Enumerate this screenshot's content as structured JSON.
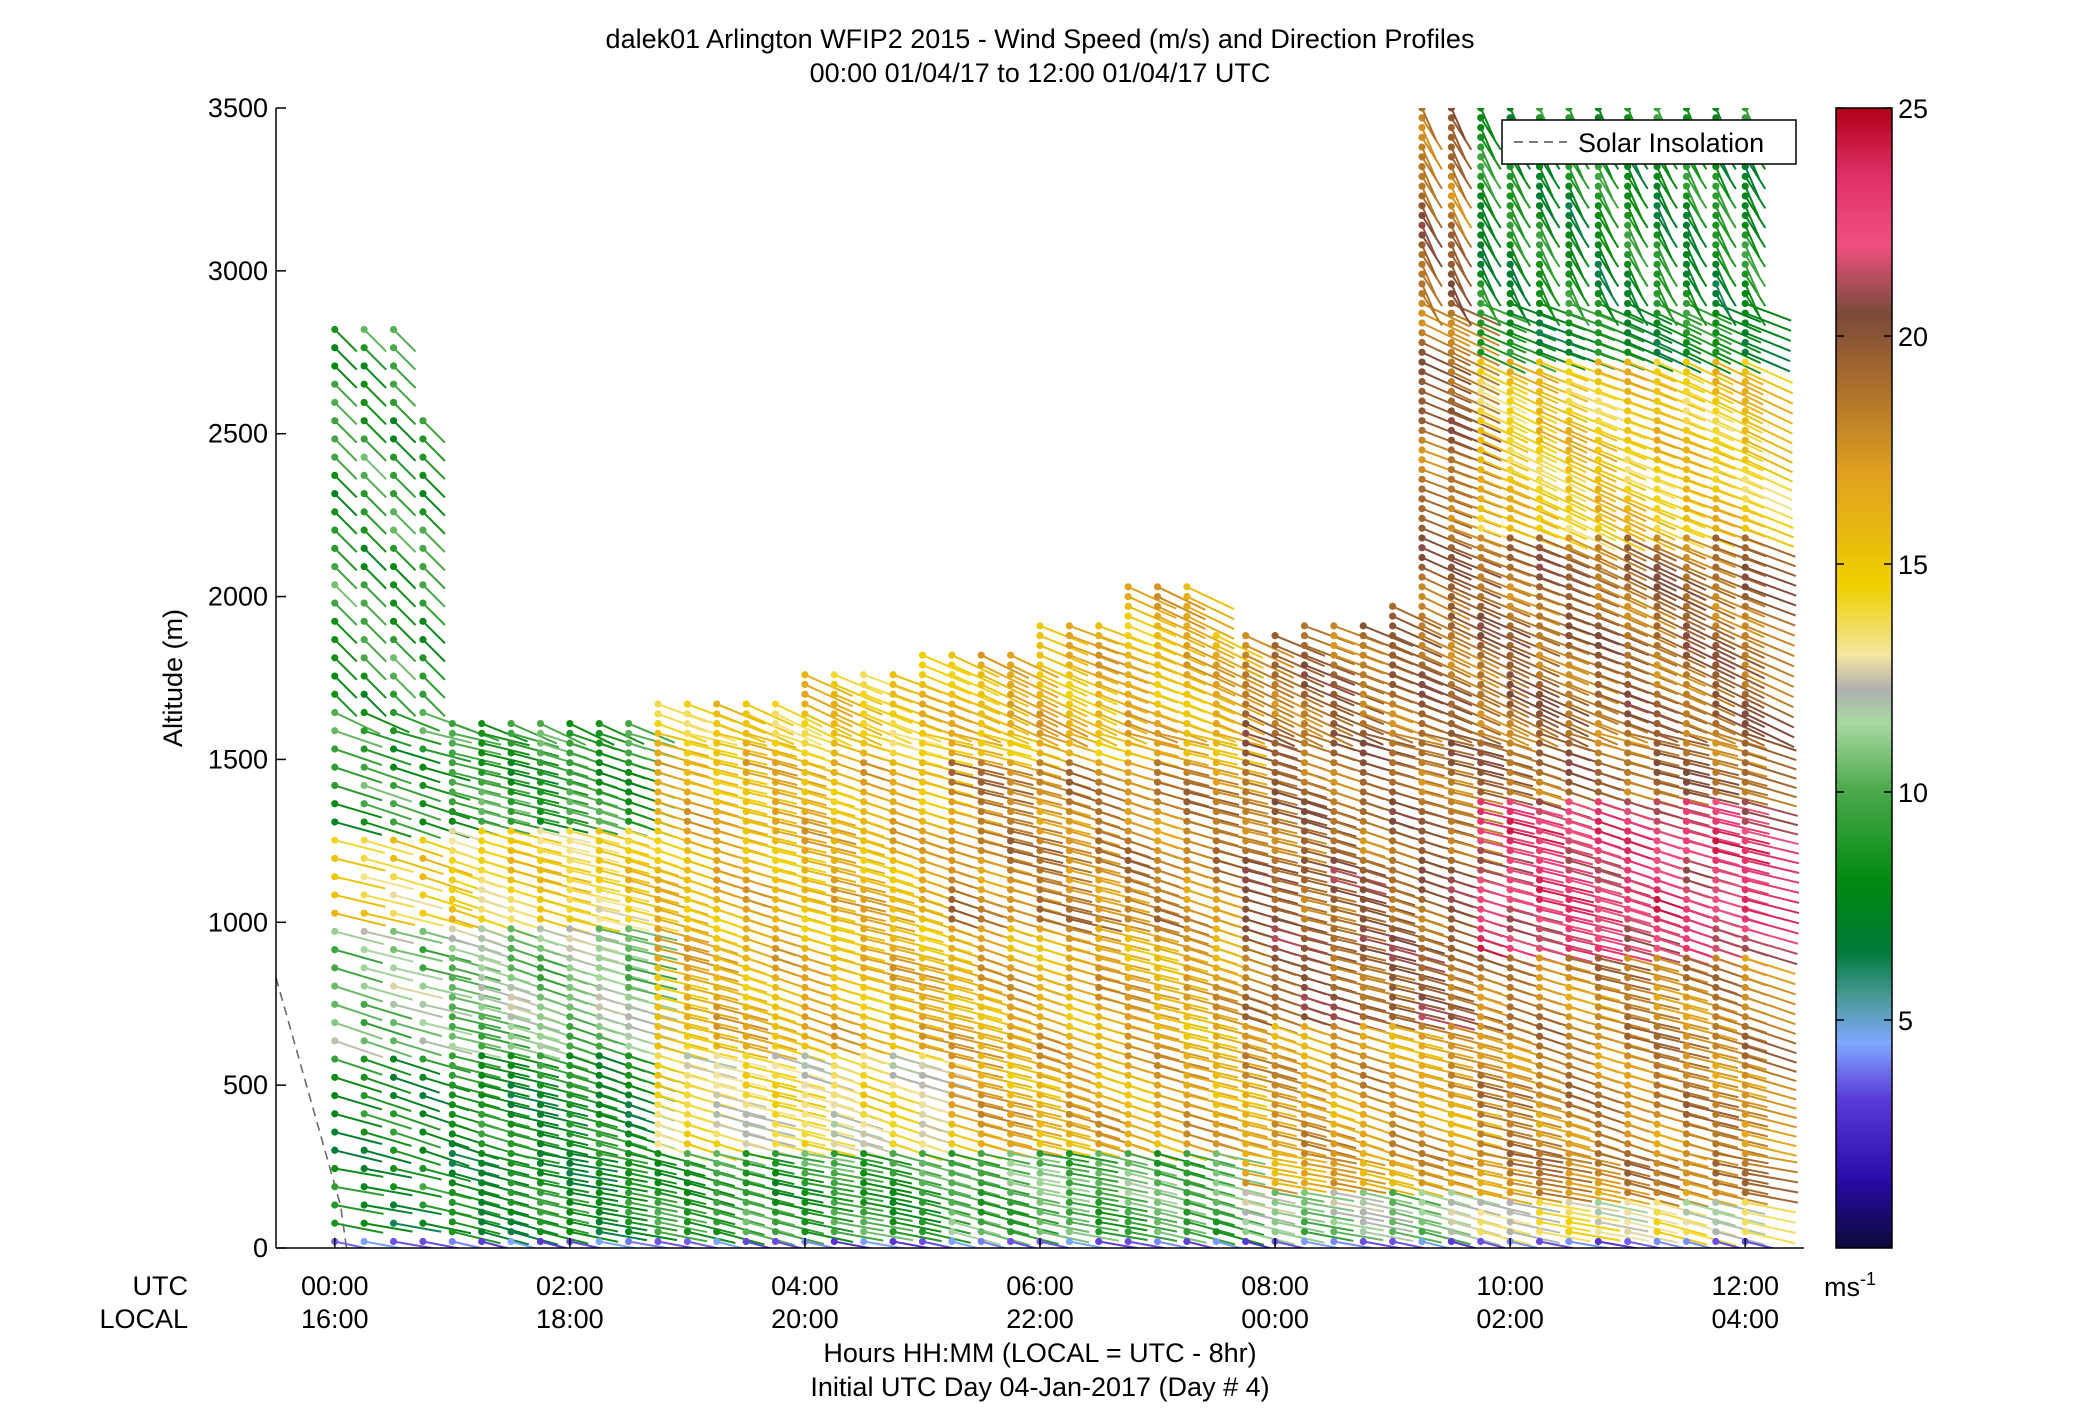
{
  "chart_data": {
    "type": "wind-barb-profile",
    "title": "dalek01 Arlington WFIP2 2015 - Wind Speed (m/s) and Direction Profiles",
    "subtitle": "00:00 01/04/17 to 12:00 01/04/17  UTC",
    "ylabel": "Altitude (m)",
    "xlabel": "Hours HH:MM  (LOCAL = UTC - 8hr)",
    "xlabel2": "Initial UTC Day 04-Jan-2017 (Day # 4)",
    "utc_row_label": "UTC",
    "local_row_label": "LOCAL",
    "x_ticks_utc": [
      "00:00",
      "02:00",
      "04:00",
      "06:00",
      "08:00",
      "10:00",
      "12:00"
    ],
    "x_ticks_local": [
      "16:00",
      "18:00",
      "20:00",
      "22:00",
      "00:00",
      "02:00",
      "04:00"
    ],
    "x_tick_hours": [
      0,
      2,
      4,
      6,
      8,
      10,
      12
    ],
    "xlim_hours": [
      -0.5,
      12.5
    ],
    "y_ticks": [
      "0",
      "500",
      "1000",
      "1500",
      "2000",
      "2500",
      "3000",
      "3500"
    ],
    "ylim": [
      0,
      3500
    ],
    "legend": {
      "label": "Solar Insolation",
      "placement": "top-right"
    },
    "colorbar": {
      "min": 0,
      "max": 25,
      "ticks": [
        "5",
        "10",
        "15",
        "20",
        "25"
      ],
      "unit": "ms",
      "unit_exp": "-1"
    },
    "solar_insolation": [
      {
        "x": -0.5,
        "y": 830
      },
      {
        "x": 0.05,
        "y": 130
      },
      {
        "x": 0.1,
        "y": 0
      }
    ],
    "profile_interval_hours": 0.25,
    "data_top_altitude_m": [
      [
        0.0,
        2830
      ],
      [
        0.5,
        2830
      ],
      [
        0.75,
        2550
      ],
      [
        1.0,
        1620
      ],
      [
        2.75,
        1690
      ],
      [
        4.0,
        1780
      ],
      [
        5.0,
        1830
      ],
      [
        6.0,
        1910
      ],
      [
        6.75,
        2050
      ],
      [
        7.5,
        1880
      ],
      [
        8.25,
        1920
      ],
      [
        9.0,
        1990
      ],
      [
        9.25,
        3500
      ],
      [
        12.0,
        3500
      ]
    ],
    "speed_bands_by_altitude": [
      {
        "hours": [
          0,
          2.5
        ],
        "bands": [
          [
            0,
            600,
            8
          ],
          [
            600,
            1000,
            11
          ],
          [
            1000,
            1300,
            14.5
          ],
          [
            1300,
            1600,
            9
          ]
        ]
      },
      {
        "hours": [
          2.5,
          5
        ],
        "bands": [
          [
            0,
            300,
            9
          ],
          [
            300,
            600,
            13.5
          ],
          [
            600,
            1500,
            16
          ],
          [
            1500,
            1800,
            15
          ]
        ]
      },
      {
        "hours": [
          5,
          7.5
        ],
        "bands": [
          [
            0,
            300,
            10
          ],
          [
            300,
            1000,
            16.5
          ],
          [
            1000,
            1500,
            18
          ],
          [
            1500,
            2000,
            16
          ]
        ]
      },
      {
        "hours": [
          7.5,
          9.5
        ],
        "bands": [
          [
            0,
            200,
            11
          ],
          [
            200,
            700,
            17
          ],
          [
            700,
            1200,
            19.5
          ],
          [
            1200,
            2000,
            19
          ]
        ]
      },
      {
        "hours": [
          9.5,
          12
        ],
        "bands": [
          [
            0,
            150,
            13
          ],
          [
            150,
            900,
            18
          ],
          [
            900,
            1400,
            22.5
          ],
          [
            1400,
            2200,
            19
          ],
          [
            2200,
            2750,
            15
          ],
          [
            2750,
            3500,
            8
          ]
        ]
      }
    ]
  }
}
